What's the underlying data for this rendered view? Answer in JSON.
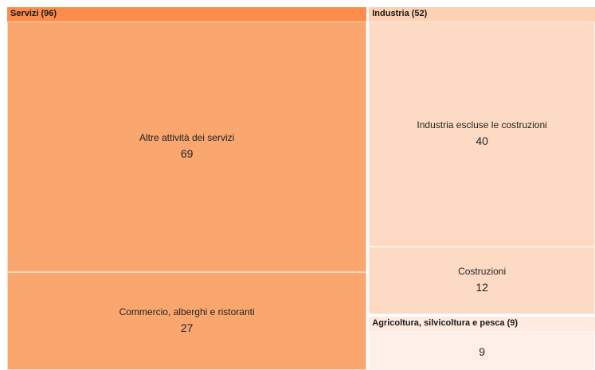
{
  "chart_data": {
    "type": "treemap",
    "groups": [
      {
        "name": "Servizi",
        "label": "Servizi (96)",
        "value": 96,
        "color_header": "#fb8c4c",
        "children": [
          {
            "label": "Altre attività dei servizi",
            "value": 69,
            "value_text": "69",
            "color": "#f9a66f"
          },
          {
            "label": "Commercio, alberghi e ristoranti",
            "value": 27,
            "value_text": "27",
            "color": "#f9a66f"
          }
        ]
      },
      {
        "name": "Industria",
        "label": "Industria (52)",
        "value": 52,
        "color_header": "#fdd1b4",
        "children": [
          {
            "label": "Industria escluse le costruzioni",
            "value": 40,
            "value_text": "40",
            "color": "#fddac4"
          },
          {
            "label": "Costruzioni",
            "value": 12,
            "value_text": "12",
            "color": "#fddac4"
          }
        ]
      },
      {
        "name": "Agricoltura",
        "label": "Agricoltura, silvicoltura e pesca (9)",
        "value": 9,
        "color_header": "#feeadf",
        "children": [
          {
            "label": "",
            "value": 9,
            "value_text": "9",
            "color": "#fef0e8"
          }
        ]
      }
    ]
  }
}
